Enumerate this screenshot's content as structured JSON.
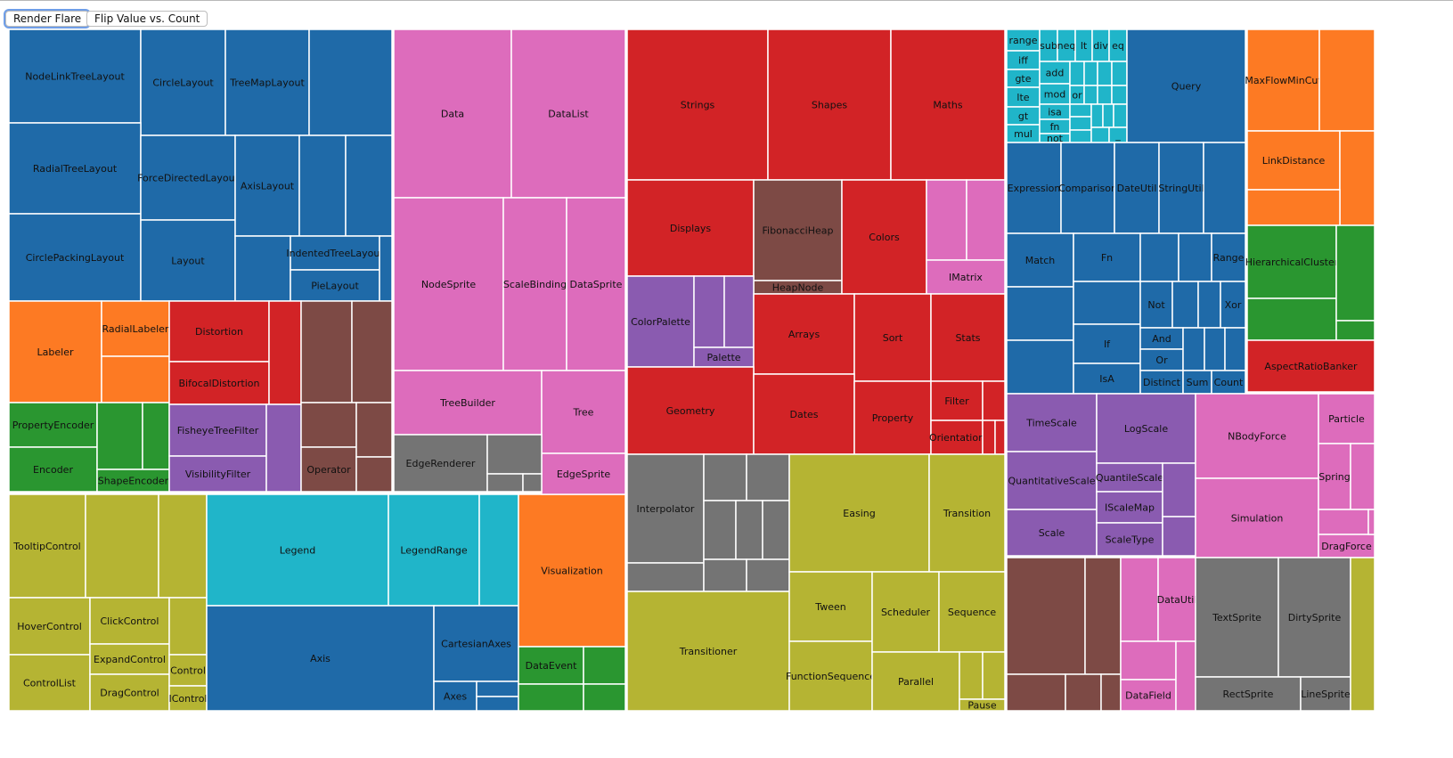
{
  "toolbar": {
    "render_label": "Render Flare",
    "flip_label": "Flip Value vs. Count"
  },
  "chart_data": {
    "type": "treemap",
    "palette": {
      "b": "#1f6aa8",
      "o": "#fd7a23",
      "g": "#2a9630",
      "r": "#d22326",
      "p": "#8a5bb0",
      "n": "#7d4a45",
      "k": "#dd6cbc",
      "y": "#747474",
      "l": "#b5b433",
      "c": "#20b5c9"
    },
    "leaves": [
      {
        "name": "NodeLinkTreeLayout",
        "group": "b"
      },
      {
        "name": "CircleLayout",
        "group": "b"
      },
      {
        "name": "TreeMapLayout",
        "group": "b"
      },
      {
        "name": "",
        "group": "b"
      },
      {
        "name": "RadialTreeLayout",
        "group": "b"
      },
      {
        "name": "CirclePackingLayout",
        "group": "b"
      },
      {
        "name": "ForceDirectedLayout",
        "group": "b"
      },
      {
        "name": "Layout",
        "group": "b"
      },
      {
        "name": "AxisLayout",
        "group": "b"
      },
      {
        "name": "",
        "group": "b"
      },
      {
        "name": "",
        "group": "b"
      },
      {
        "name": "",
        "group": "b"
      },
      {
        "name": "IndentedTreeLayout",
        "group": "b"
      },
      {
        "name": "PieLayout",
        "group": "b"
      },
      {
        "name": "",
        "group": "b"
      },
      {
        "name": "Labeler",
        "group": "o"
      },
      {
        "name": "RadialLabeler",
        "group": "o"
      },
      {
        "name": "",
        "group": "o"
      },
      {
        "name": "PropertyEncoder",
        "group": "g"
      },
      {
        "name": "Encoder",
        "group": "g"
      },
      {
        "name": "",
        "group": "g"
      },
      {
        "name": "",
        "group": "g"
      },
      {
        "name": "ShapeEncoder",
        "group": "g"
      },
      {
        "name": "Distortion",
        "group": "r"
      },
      {
        "name": "BifocalDistortion",
        "group": "r"
      },
      {
        "name": "",
        "group": "r"
      },
      {
        "name": "FisheyeTreeFilter",
        "group": "p"
      },
      {
        "name": "VisibilityFilter",
        "group": "p"
      },
      {
        "name": "",
        "group": "p"
      },
      {
        "name": "",
        "group": "n"
      },
      {
        "name": "",
        "group": "n"
      },
      {
        "name": "",
        "group": "n"
      },
      {
        "name": "Operator",
        "group": "n"
      },
      {
        "name": "",
        "group": "n"
      },
      {
        "name": "",
        "group": "n"
      },
      {
        "name": "TooltipControl",
        "group": "l"
      },
      {
        "name": "",
        "group": "l"
      },
      {
        "name": "",
        "group": "l"
      },
      {
        "name": "HoverControl",
        "group": "l"
      },
      {
        "name": "ControlList",
        "group": "l"
      },
      {
        "name": "ClickControl",
        "group": "l"
      },
      {
        "name": "ExpandControl",
        "group": "l"
      },
      {
        "name": "DragControl",
        "group": "l"
      },
      {
        "name": "",
        "group": "l"
      },
      {
        "name": "Control",
        "group": "l"
      },
      {
        "name": "IControl",
        "group": "l"
      },
      {
        "name": "Legend",
        "group": "c"
      },
      {
        "name": "LegendRange",
        "group": "c"
      },
      {
        "name": "",
        "group": "c"
      },
      {
        "name": "Axis",
        "group": "b"
      },
      {
        "name": "CartesianAxes",
        "group": "b"
      },
      {
        "name": "Axes",
        "group": "b"
      },
      {
        "name": "",
        "group": "b"
      },
      {
        "name": "",
        "group": "b"
      },
      {
        "name": "Visualization",
        "group": "o"
      },
      {
        "name": "DataEvent",
        "group": "g"
      },
      {
        "name": "",
        "group": "g"
      },
      {
        "name": "",
        "group": "g"
      },
      {
        "name": "",
        "group": "g"
      },
      {
        "name": "Data",
        "group": "k"
      },
      {
        "name": "DataList",
        "group": "k"
      },
      {
        "name": "NodeSprite",
        "group": "k"
      },
      {
        "name": "ScaleBinding",
        "group": "k"
      },
      {
        "name": "DataSprite",
        "group": "k"
      },
      {
        "name": "TreeBuilder",
        "group": "k"
      },
      {
        "name": "Tree",
        "group": "k"
      },
      {
        "name": "EdgeSprite",
        "group": "k"
      },
      {
        "name": "EdgeRenderer",
        "group": "y"
      },
      {
        "name": "",
        "group": "y"
      },
      {
        "name": "",
        "group": "y"
      },
      {
        "name": "",
        "group": "y"
      },
      {
        "name": "Strings",
        "group": "r"
      },
      {
        "name": "Shapes",
        "group": "r"
      },
      {
        "name": "Maths",
        "group": "r"
      },
      {
        "name": "Displays",
        "group": "r"
      },
      {
        "name": "FibonacciHeap",
        "group": "n"
      },
      {
        "name": "HeapNode",
        "group": "n"
      },
      {
        "name": "Colors",
        "group": "r"
      },
      {
        "name": "",
        "group": "k"
      },
      {
        "name": "",
        "group": "k"
      },
      {
        "name": "IMatrix",
        "group": "k"
      },
      {
        "name": "ColorPalette",
        "group": "p"
      },
      {
        "name": "",
        "group": "p"
      },
      {
        "name": "",
        "group": "p"
      },
      {
        "name": "Palette",
        "group": "p"
      },
      {
        "name": "Arrays",
        "group": "r"
      },
      {
        "name": "Sort",
        "group": "r"
      },
      {
        "name": "Stats",
        "group": "r"
      },
      {
        "name": "Geometry",
        "group": "r"
      },
      {
        "name": "Dates",
        "group": "r"
      },
      {
        "name": "Property",
        "group": "r"
      },
      {
        "name": "Filter",
        "group": "r"
      },
      {
        "name": "",
        "group": "r"
      },
      {
        "name": "Orientation",
        "group": "r"
      },
      {
        "name": "",
        "group": "r"
      },
      {
        "name": "",
        "group": "r"
      },
      {
        "name": "Interpolator",
        "group": "y"
      },
      {
        "name": "",
        "group": "y"
      },
      {
        "name": "",
        "group": "y"
      },
      {
        "name": "",
        "group": "y"
      },
      {
        "name": "",
        "group": "y"
      },
      {
        "name": "",
        "group": "y"
      },
      {
        "name": "",
        "group": "y"
      },
      {
        "name": "",
        "group": "y"
      },
      {
        "name": "",
        "group": "y"
      },
      {
        "name": "Easing",
        "group": "l"
      },
      {
        "name": "Transition",
        "group": "l"
      },
      {
        "name": "Transitioner",
        "group": "l"
      },
      {
        "name": "Tween",
        "group": "l"
      },
      {
        "name": "FunctionSequence",
        "group": "l"
      },
      {
        "name": "Scheduler",
        "group": "l"
      },
      {
        "name": "Sequence",
        "group": "l"
      },
      {
        "name": "Parallel",
        "group": "l"
      },
      {
        "name": "",
        "group": "l"
      },
      {
        "name": "",
        "group": "l"
      },
      {
        "name": "Pause",
        "group": "l"
      },
      {
        "name": "range",
        "group": "c"
      },
      {
        "name": "iff",
        "group": "c"
      },
      {
        "name": "gte",
        "group": "c"
      },
      {
        "name": "lte",
        "group": "c"
      },
      {
        "name": "gt",
        "group": "c"
      },
      {
        "name": "mul",
        "group": "c"
      },
      {
        "name": "sub",
        "group": "c"
      },
      {
        "name": "neq",
        "group": "c"
      },
      {
        "name": "lt",
        "group": "c"
      },
      {
        "name": "div",
        "group": "c"
      },
      {
        "name": "eq",
        "group": "c"
      },
      {
        "name": "add",
        "group": "c"
      },
      {
        "name": "mod",
        "group": "c"
      },
      {
        "name": "isa",
        "group": "c"
      },
      {
        "name": "fn",
        "group": "c"
      },
      {
        "name": "not",
        "group": "c"
      },
      {
        "name": "",
        "group": "c"
      },
      {
        "name": "or",
        "group": "c"
      },
      {
        "name": "",
        "group": "c"
      },
      {
        "name": "",
        "group": "c"
      },
      {
        "name": "",
        "group": "c"
      },
      {
        "name": "",
        "group": "c"
      },
      {
        "name": "",
        "group": "c"
      },
      {
        "name": "",
        "group": "c"
      },
      {
        "name": "",
        "group": "c"
      },
      {
        "name": "",
        "group": "c"
      },
      {
        "name": "",
        "group": "c"
      },
      {
        "name": "",
        "group": "c"
      },
      {
        "name": "",
        "group": "c"
      },
      {
        "name": "",
        "group": "c"
      },
      {
        "name": "",
        "group": "c"
      },
      {
        "name": "_",
        "group": "c"
      },
      {
        "name": "Query",
        "group": "b"
      },
      {
        "name": "Expression",
        "group": "b"
      },
      {
        "name": "Comparison",
        "group": "b"
      },
      {
        "name": "DateUtil",
        "group": "b"
      },
      {
        "name": "StringUtil",
        "group": "b"
      },
      {
        "name": "",
        "group": "b"
      },
      {
        "name": "Match",
        "group": "b"
      },
      {
        "name": "",
        "group": "b"
      },
      {
        "name": "",
        "group": "b"
      },
      {
        "name": "Fn",
        "group": "b"
      },
      {
        "name": "",
        "group": "b"
      },
      {
        "name": "If",
        "group": "b"
      },
      {
        "name": "IsA",
        "group": "b"
      },
      {
        "name": "",
        "group": "b"
      },
      {
        "name": "",
        "group": "b"
      },
      {
        "name": "Range",
        "group": "b"
      },
      {
        "name": "Not",
        "group": "b"
      },
      {
        "name": "",
        "group": "b"
      },
      {
        "name": "",
        "group": "b"
      },
      {
        "name": "Xor",
        "group": "b"
      },
      {
        "name": "And",
        "group": "b"
      },
      {
        "name": "Or",
        "group": "b"
      },
      {
        "name": "Distinct",
        "group": "b"
      },
      {
        "name": "",
        "group": "b"
      },
      {
        "name": "",
        "group": "b"
      },
      {
        "name": "",
        "group": "b"
      },
      {
        "name": "Sum",
        "group": "b"
      },
      {
        "name": "Count",
        "group": "b"
      },
      {
        "name": "MaxFlowMinCut",
        "group": "o"
      },
      {
        "name": "",
        "group": "o"
      },
      {
        "name": "LinkDistance",
        "group": "o"
      },
      {
        "name": "",
        "group": "o"
      },
      {
        "name": "",
        "group": "o"
      },
      {
        "name": "HierarchicalCluster",
        "group": "g"
      },
      {
        "name": "",
        "group": "g"
      },
      {
        "name": "",
        "group": "g"
      },
      {
        "name": "",
        "group": "g"
      },
      {
        "name": "AspectRatioBanker",
        "group": "r"
      },
      {
        "name": "TimeScale",
        "group": "p"
      },
      {
        "name": "QuantitativeScale",
        "group": "p"
      },
      {
        "name": "Scale",
        "group": "p"
      },
      {
        "name": "LogScale",
        "group": "p"
      },
      {
        "name": "QuantileScale",
        "group": "p"
      },
      {
        "name": "IScaleMap",
        "group": "p"
      },
      {
        "name": "ScaleType",
        "group": "p"
      },
      {
        "name": "",
        "group": "p"
      },
      {
        "name": "",
        "group": "p"
      },
      {
        "name": "NBodyForce",
        "group": "k"
      },
      {
        "name": "Simulation",
        "group": "k"
      },
      {
        "name": "Particle",
        "group": "k"
      },
      {
        "name": "Spring",
        "group": "k"
      },
      {
        "name": "",
        "group": "k"
      },
      {
        "name": "",
        "group": "k"
      },
      {
        "name": "DragForce",
        "group": "k"
      },
      {
        "name": "",
        "group": "k"
      },
      {
        "name": "",
        "group": "n"
      },
      {
        "name": "",
        "group": "n"
      },
      {
        "name": "",
        "group": "n"
      },
      {
        "name": "",
        "group": "n"
      },
      {
        "name": "",
        "group": "n"
      },
      {
        "name": "",
        "group": "k"
      },
      {
        "name": "DataUtil",
        "group": "k"
      },
      {
        "name": "",
        "group": "k"
      },
      {
        "name": "DataField",
        "group": "k"
      },
      {
        "name": "",
        "group": "k"
      },
      {
        "name": "TextSprite",
        "group": "y"
      },
      {
        "name": "DirtySprite",
        "group": "y"
      },
      {
        "name": "RectSprite",
        "group": "y"
      },
      {
        "name": "LineSprite",
        "group": "y"
      },
      {
        "name": "",
        "group": "l"
      }
    ]
  }
}
